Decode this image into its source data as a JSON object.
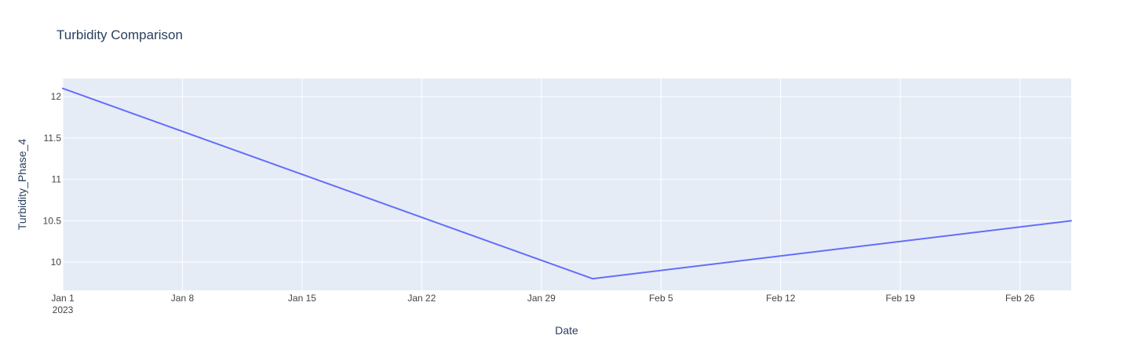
{
  "chart_data": {
    "type": "line",
    "title": "Turbidity Comparison",
    "xlabel": "Date",
    "ylabel": "Turbidity_Phase_4",
    "x": [
      "2023-01-01",
      "2023-02-01",
      "2023-03-01"
    ],
    "series": [
      {
        "values": [
          12.1,
          9.8,
          10.5
        ],
        "color": "#636efa"
      }
    ],
    "xlim": [
      "2023-01-01",
      "2023-03-01"
    ],
    "ylim": [
      9.66,
      12.22
    ],
    "x_ticks": [
      {
        "date": "2023-01-01",
        "label": "Jan 1",
        "sublabel": "2023"
      },
      {
        "date": "2023-01-08",
        "label": "Jan 8"
      },
      {
        "date": "2023-01-15",
        "label": "Jan 15"
      },
      {
        "date": "2023-01-22",
        "label": "Jan 22"
      },
      {
        "date": "2023-01-29",
        "label": "Jan 29"
      },
      {
        "date": "2023-02-05",
        "label": "Feb 5"
      },
      {
        "date": "2023-02-12",
        "label": "Feb 12"
      },
      {
        "date": "2023-02-19",
        "label": "Feb 19"
      },
      {
        "date": "2023-02-26",
        "label": "Feb 26"
      }
    ],
    "y_ticks": [
      {
        "value": 10,
        "label": "10"
      },
      {
        "value": 10.5,
        "label": "10.5"
      },
      {
        "value": 11,
        "label": "11"
      },
      {
        "value": 11.5,
        "label": "11.5"
      },
      {
        "value": 12,
        "label": "12"
      }
    ],
    "grid": true,
    "legend": "none",
    "colors": {
      "plot_bg": "#e5ecf6",
      "grid": "#ffffff",
      "text": "#2a3f5f",
      "tick_text": "#444444"
    }
  }
}
